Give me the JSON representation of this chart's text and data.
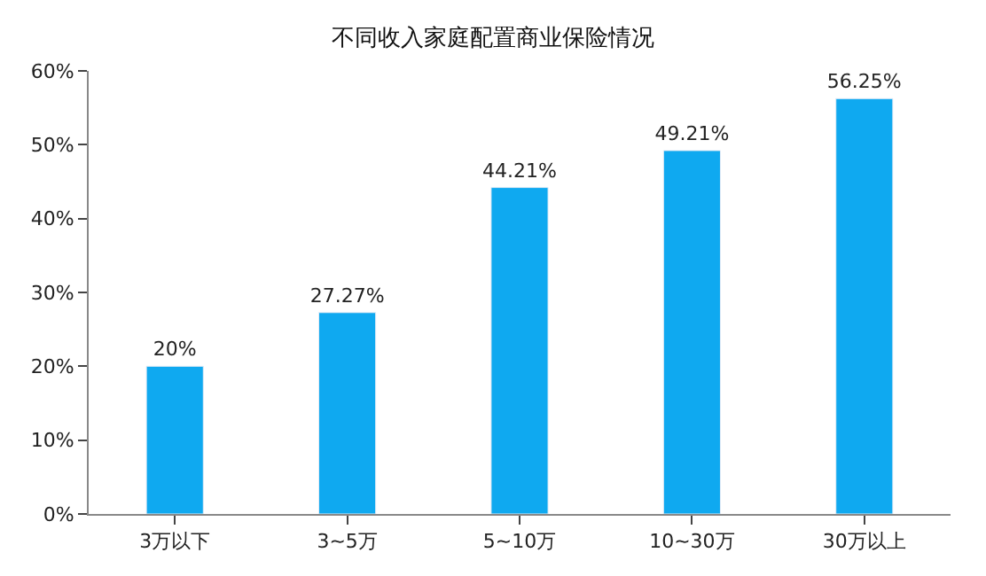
{
  "chart_data": {
    "type": "bar",
    "title": "不同收入家庭配置商业保险情况",
    "categories": [
      "3万以下",
      "3~5万",
      "5~10万",
      "10~30万",
      "30万以上"
    ],
    "values": [
      20,
      27.27,
      44.21,
      49.21,
      56.25
    ],
    "value_labels": [
      "20%",
      "27.27%",
      "44.21%",
      "49.21%",
      "56.25%"
    ],
    "color": "#0fa9f0",
    "ylim": [
      0,
      60
    ],
    "yticks": [
      {
        "value": 0,
        "label": "0%"
      },
      {
        "value": 10,
        "label": "10%"
      },
      {
        "value": 20,
        "label": "20%"
      },
      {
        "value": 30,
        "label": "30%"
      },
      {
        "value": 40,
        "label": "40%"
      },
      {
        "value": 50,
        "label": "50%"
      },
      {
        "value": 60,
        "label": "60%"
      }
    ],
    "legend": false
  }
}
